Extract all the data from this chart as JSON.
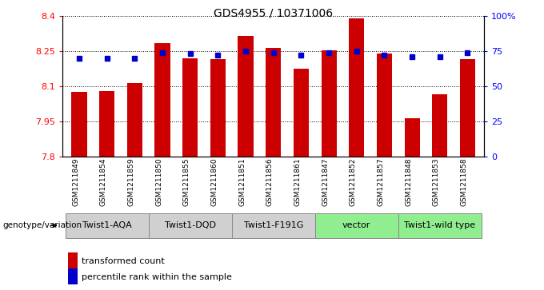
{
  "title": "GDS4955 / 10371006",
  "samples": [
    "GSM1211849",
    "GSM1211854",
    "GSM1211859",
    "GSM1211850",
    "GSM1211855",
    "GSM1211860",
    "GSM1211851",
    "GSM1211856",
    "GSM1211861",
    "GSM1211847",
    "GSM1211852",
    "GSM1211857",
    "GSM1211848",
    "GSM1211853",
    "GSM1211858"
  ],
  "bar_values": [
    8.075,
    8.08,
    8.115,
    8.285,
    8.22,
    8.215,
    8.315,
    8.265,
    8.175,
    8.255,
    8.39,
    8.24,
    7.965,
    8.065,
    8.215
  ],
  "percentile_values": [
    70,
    70,
    70,
    74,
    73,
    72,
    75,
    74,
    72,
    74,
    75,
    72,
    71,
    71,
    74
  ],
  "bar_color": "#cc0000",
  "percentile_color": "#0000cc",
  "ymin": 7.8,
  "ymax": 8.4,
  "y_ticks": [
    7.8,
    7.95,
    8.1,
    8.25,
    8.4
  ],
  "y_tick_labels": [
    "7.8",
    "7.95",
    "8.1",
    "8.25",
    "8.4"
  ],
  "y2min": 0,
  "y2max": 100,
  "y2_ticks": [
    0,
    25,
    50,
    75,
    100
  ],
  "y2_tick_labels": [
    "0",
    "25",
    "50",
    "75",
    "100%"
  ],
  "groups": [
    {
      "label": "Twist1-AQA",
      "start": 0,
      "end": 3,
      "color": "#d0d0d0"
    },
    {
      "label": "Twist1-DQD",
      "start": 3,
      "end": 6,
      "color": "#d0d0d0"
    },
    {
      "label": "Twist1-F191G",
      "start": 6,
      "end": 9,
      "color": "#d0d0d0"
    },
    {
      "label": "vector",
      "start": 9,
      "end": 12,
      "color": "#90ee90"
    },
    {
      "label": "Twist1-wild type",
      "start": 12,
      "end": 15,
      "color": "#90ee90"
    }
  ],
  "legend_label_bar": "transformed count",
  "legend_label_pct": "percentile rank within the sample",
  "genotype_label": "genotype/variation",
  "bar_width": 0.55
}
